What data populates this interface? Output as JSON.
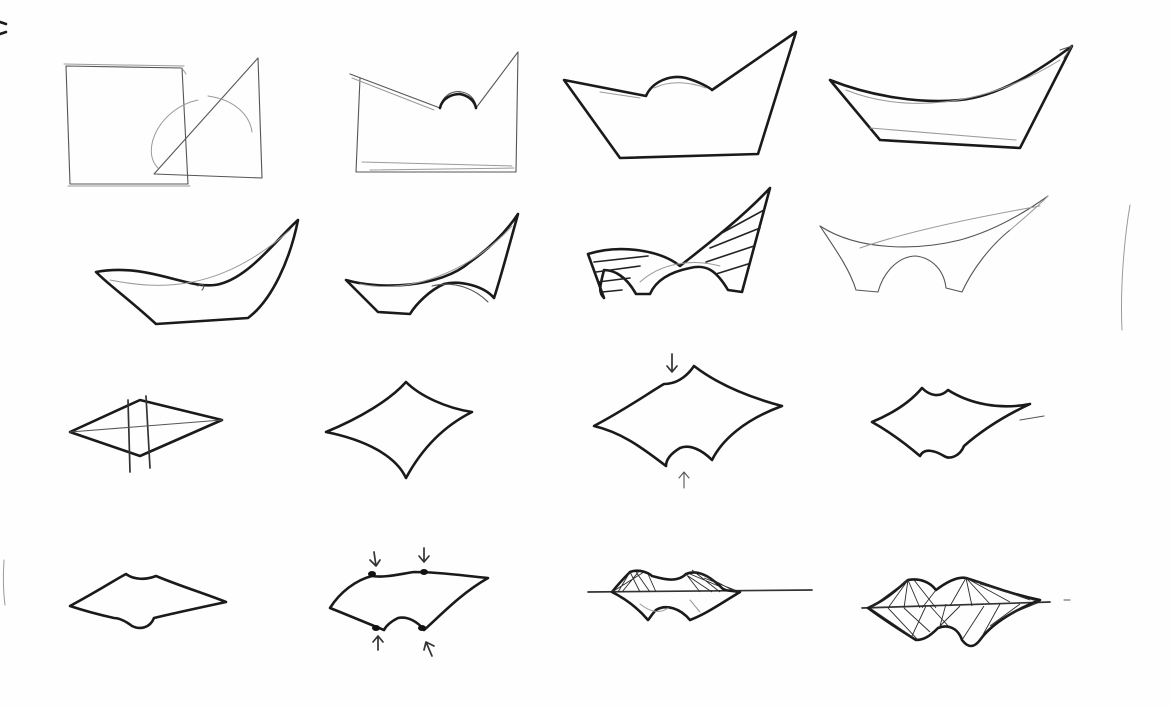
{
  "sheet": {
    "rows": [
      {
        "sketches": [
          "square-and-triangle-overlap",
          "combined-outline-with-arc",
          "bold-outline-with-dome",
          "shallow-boat-shape"
        ]
      },
      {
        "sketches": [
          "curved-hull",
          "hull-with-arch-opening",
          "hatched-saddle-form",
          "light-double-arch-form"
        ]
      },
      {
        "sketches": [
          "crossed-diamond",
          "curved-diamond",
          "diamond-with-notches-and-arrows",
          "small-notched-diamond"
        ]
      },
      {
        "sketches": [
          "notched-lens",
          "lens-with-four-pressure-arrows",
          "tensile-lines-above-axis",
          "tensile-web-both-sides"
        ]
      }
    ],
    "colors": {
      "paper": "#fefefe",
      "ink": "#1a1a1a",
      "pencil": "#9a9a9a"
    }
  }
}
